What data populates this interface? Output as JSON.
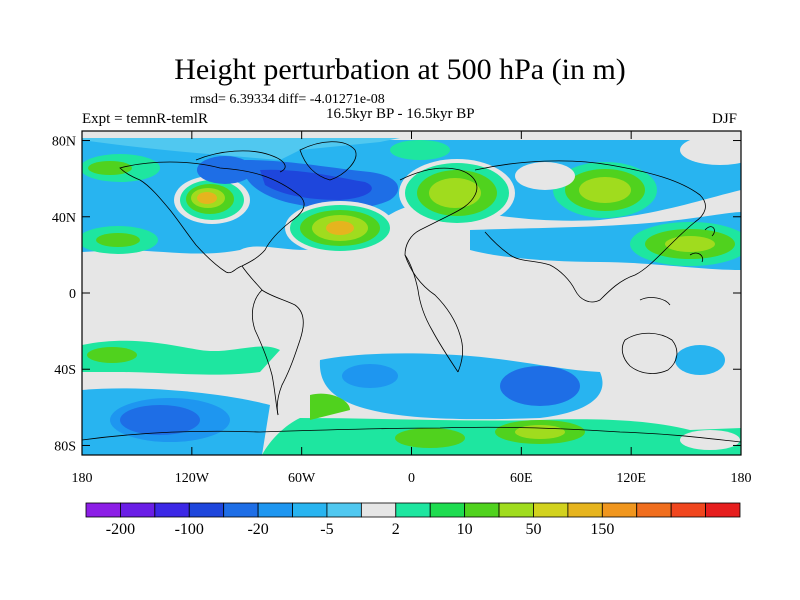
{
  "title": "Height perturbation at 500 hPa (in m)",
  "stats": "rmsd= 6.39334 diff= -4.01271e-08",
  "left_label": "Expt = temnR-temlR",
  "center_label": "16.5kyr BP - 16.5kyr BP",
  "right_label": "DJF",
  "lat_ticks": [
    {
      "label": "80N",
      "lat": 80
    },
    {
      "label": "40N",
      "lat": 40
    },
    {
      "label": "0",
      "lat": 0
    },
    {
      "label": "40S",
      "lat": -40
    },
    {
      "label": "80S",
      "lat": -80
    }
  ],
  "lon_ticks": [
    {
      "label": "180",
      "lon": -180
    },
    {
      "label": "120W",
      "lon": -120
    },
    {
      "label": "60W",
      "lon": -60
    },
    {
      "label": "0",
      "lon": 0
    },
    {
      "label": "60E",
      "lon": 60
    },
    {
      "label": "120E",
      "lon": 120
    },
    {
      "label": "180",
      "lon": 180
    }
  ],
  "colorbar": {
    "colors": [
      "#8c1ee6",
      "#6a1ee6",
      "#3c28e6",
      "#1e46dc",
      "#1e6ee6",
      "#1e96f0",
      "#28b4f0",
      "#50c8f0",
      "#e6e6e6",
      "#1ee6a0",
      "#1edc50",
      "#50d21e",
      "#a0dc1e",
      "#d2d21e",
      "#e6b41e",
      "#f0961e",
      "#f06e1e",
      "#f0461e",
      "#e61e1e"
    ],
    "labels": [
      {
        "text": "-200",
        "boundary": 1
      },
      {
        "text": "-100",
        "boundary": 3
      },
      {
        "text": "-20",
        "boundary": 5
      },
      {
        "text": "-5",
        "boundary": 7
      },
      {
        "text": "2",
        "boundary": 9
      },
      {
        "text": "10",
        "boundary": 11
      },
      {
        "text": "50",
        "boundary": 13
      },
      {
        "text": "150",
        "boundary": 15
      }
    ]
  },
  "field_colors": {
    "neutral": "#e6e6e6",
    "cyan": "#28b4f0",
    "blue": "#1e6ee6",
    "dblue": "#1e46dc",
    "teal": "#1ee6a0",
    "green": "#50d21e",
    "yellow": "#a0dc1e",
    "orange": "#e6b41e"
  }
}
